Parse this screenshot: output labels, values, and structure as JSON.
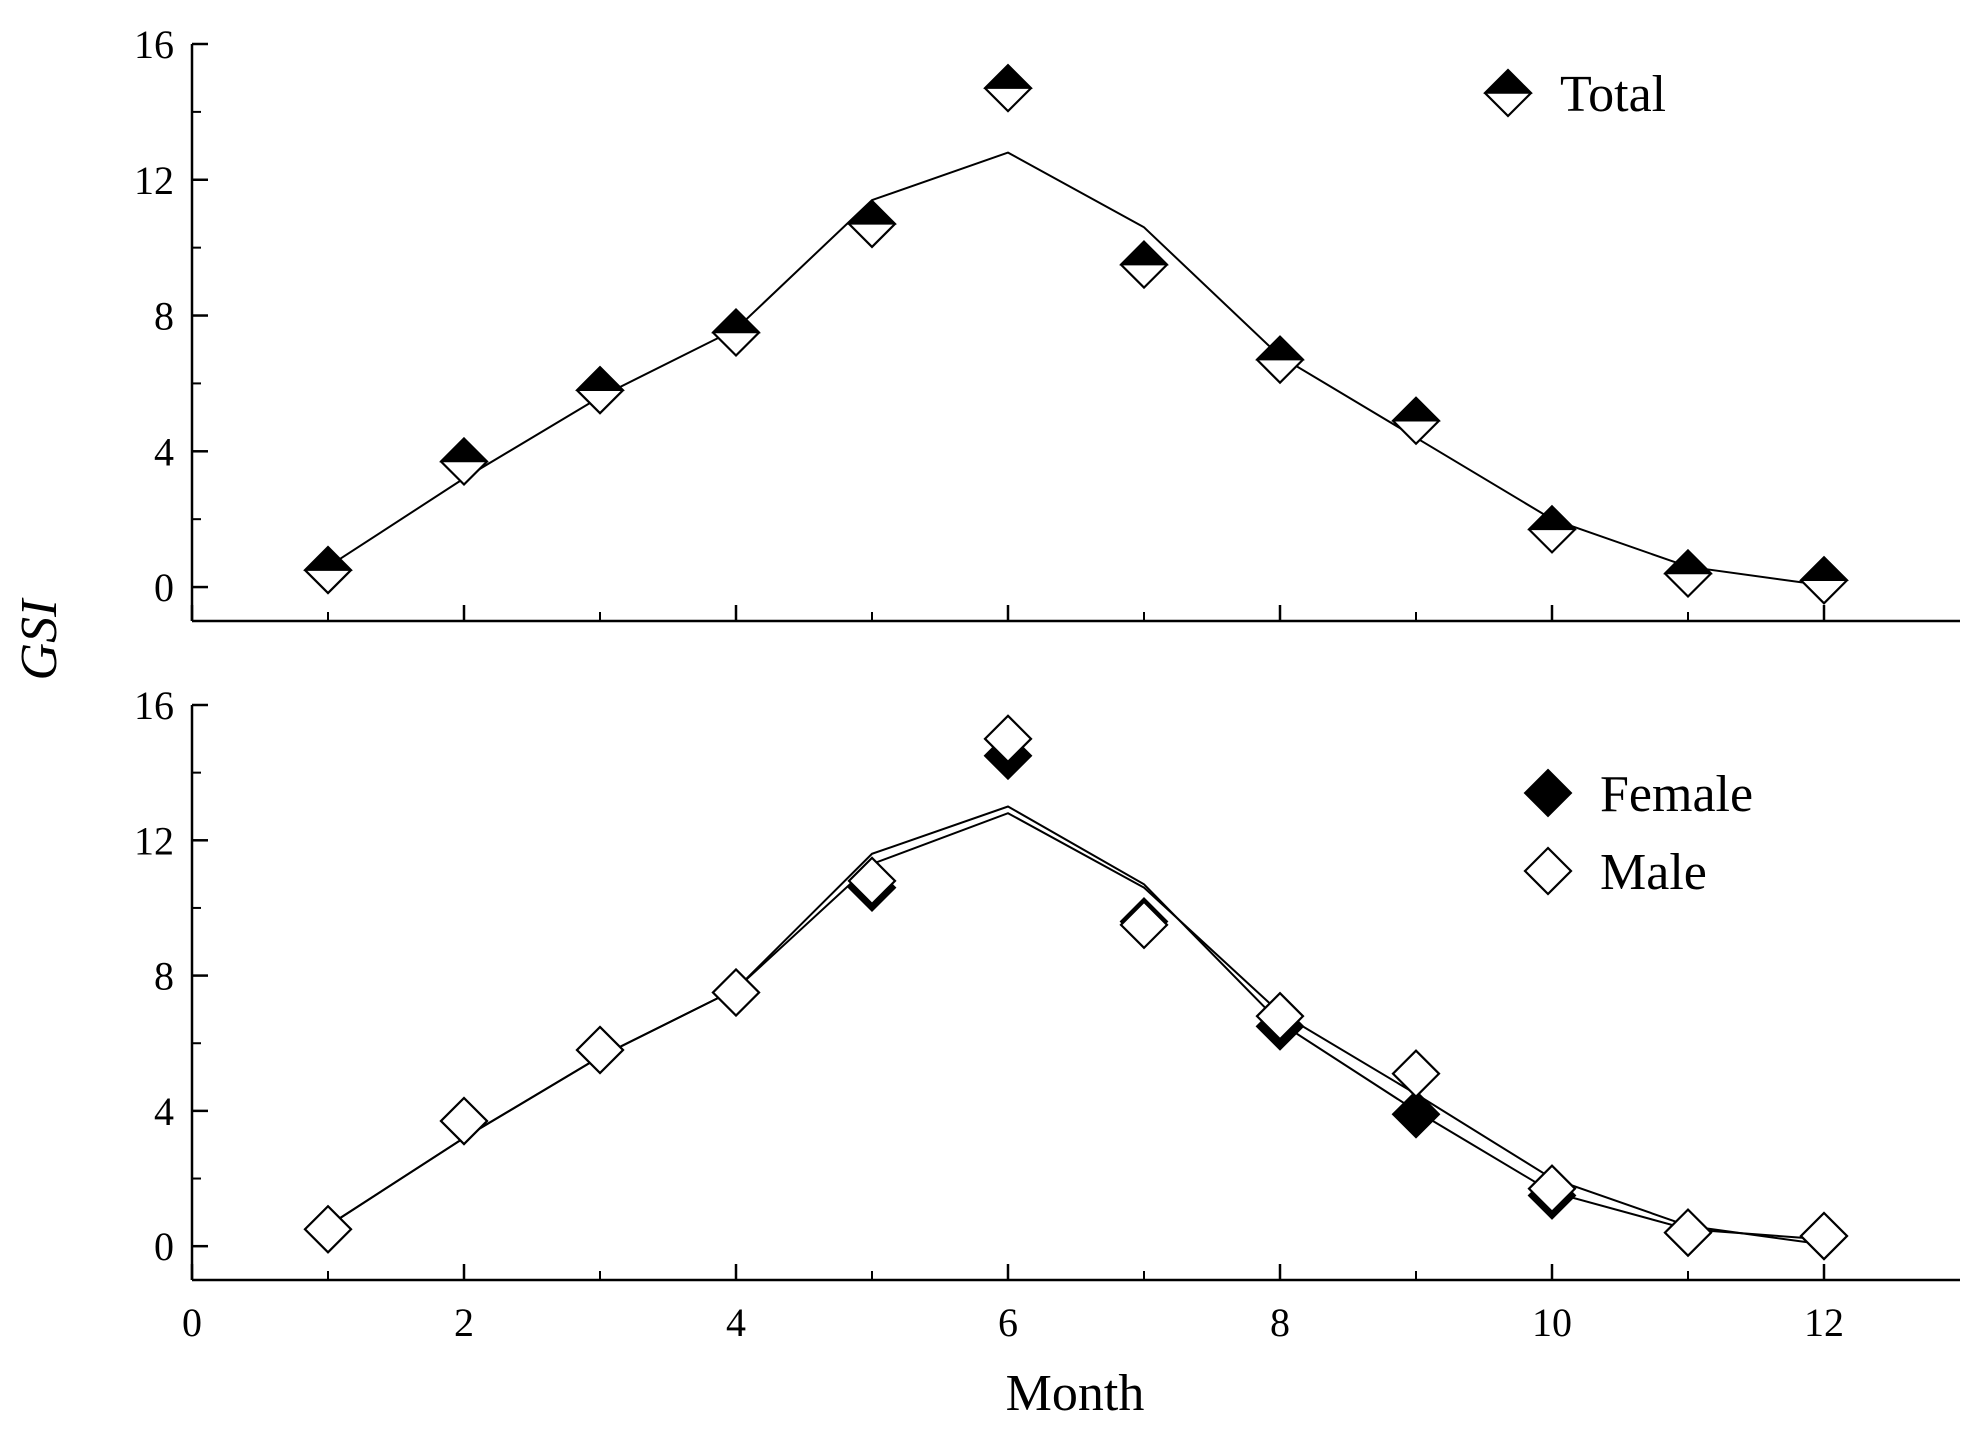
{
  "y_axis_label": "GSI",
  "x_axis_label": "Month",
  "chart_data": [
    {
      "type": "scatter",
      "panel": "top",
      "x_ticks": [
        0,
        2,
        4,
        6,
        8,
        10,
        12
      ],
      "y_ticks": [
        0,
        4,
        8,
        12,
        16
      ],
      "xlim": [
        0,
        13
      ],
      "ylim": [
        -1,
        16
      ],
      "legend_position": "top-right",
      "grid": false,
      "series": [
        {
          "name": "Total",
          "marker": "diamond-half-filled",
          "x": [
            1,
            2,
            3,
            4,
            5,
            6,
            7,
            8,
            9,
            10,
            11,
            12
          ],
          "y": [
            0.5,
            3.7,
            5.8,
            7.5,
            10.7,
            14.7,
            9.5,
            6.7,
            4.9,
            1.7,
            0.4,
            0.2
          ],
          "fit": [
            0.6,
            3.2,
            5.6,
            7.6,
            11.4,
            12.8,
            10.6,
            6.8,
            4.4,
            2.0,
            0.6,
            0.05
          ]
        }
      ]
    },
    {
      "type": "scatter",
      "panel": "bottom",
      "x_ticks": [
        0,
        2,
        4,
        6,
        8,
        10,
        12
      ],
      "y_ticks": [
        0,
        4,
        8,
        12,
        16
      ],
      "xlim": [
        0,
        13
      ],
      "ylim": [
        -1,
        16
      ],
      "legend_position": "top-right",
      "grid": false,
      "series": [
        {
          "name": "Female",
          "marker": "diamond-filled",
          "x": [
            1,
            2,
            3,
            4,
            5,
            6,
            7,
            8,
            9,
            10,
            11,
            12
          ],
          "y": [
            0.5,
            3.7,
            5.8,
            7.5,
            10.6,
            14.5,
            9.6,
            6.5,
            3.9,
            1.5,
            0.4,
            0.3
          ],
          "fit": [
            0.6,
            3.2,
            5.6,
            7.6,
            11.6,
            13.0,
            10.7,
            6.6,
            4.0,
            1.6,
            0.5,
            0.2
          ]
        },
        {
          "name": "Male",
          "marker": "diamond-open",
          "x": [
            1,
            2,
            3,
            4,
            5,
            6,
            7,
            8,
            9,
            10,
            11,
            12
          ],
          "y": [
            0.5,
            3.7,
            5.8,
            7.5,
            10.8,
            15.0,
            9.5,
            6.8,
            5.1,
            1.7,
            0.4,
            0.3
          ],
          "fit": [
            0.6,
            3.2,
            5.6,
            7.6,
            11.3,
            12.8,
            10.6,
            6.9,
            4.5,
            2.0,
            0.6,
            0.05
          ]
        }
      ]
    }
  ]
}
